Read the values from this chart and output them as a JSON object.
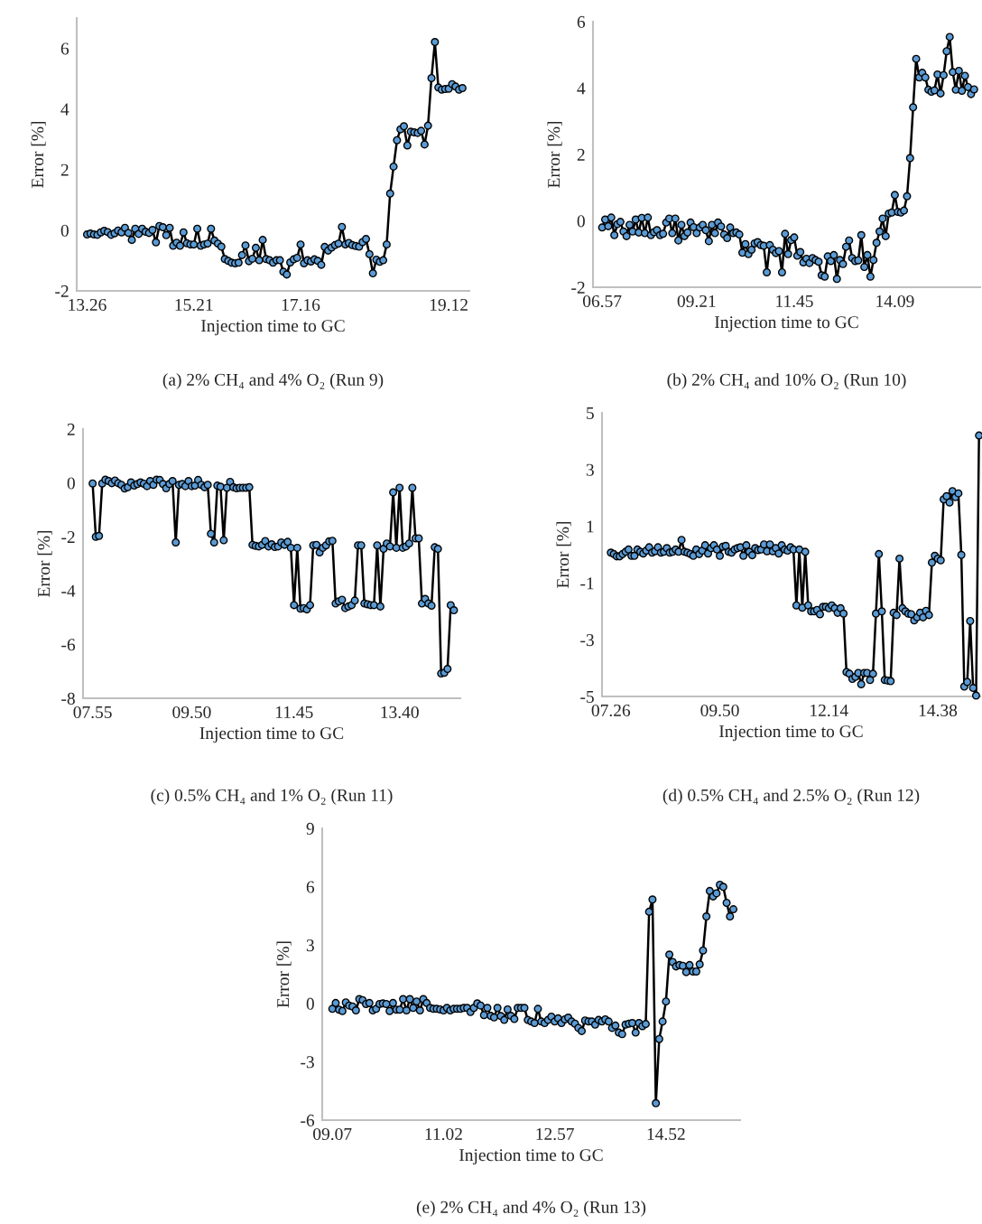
{
  "chart_data": [
    {
      "type": "line",
      "xlabel": "Injection time to GC",
      "ylabel": "Error [%]",
      "annotations": [
        "(a) 2% CH₄ and 4% O₂ (Run 9)"
      ],
      "ylim": [
        -2,
        7
      ],
      "yticks": [
        -2,
        0,
        2,
        4,
        6
      ],
      "grid": false,
      "marker": "circle",
      "line_style": "solid",
      "categories": [
        "13.26",
        null,
        null,
        null,
        null,
        null,
        null,
        null,
        null,
        null,
        null,
        null,
        null,
        null,
        null,
        null,
        null,
        null,
        null,
        null,
        null,
        null,
        null,
        null,
        null,
        null,
        null,
        null,
        null,
        null,
        null,
        "15.21",
        null,
        null,
        null,
        null,
        null,
        null,
        null,
        null,
        null,
        null,
        null,
        null,
        null,
        null,
        null,
        null,
        null,
        null,
        null,
        null,
        null,
        null,
        null,
        null,
        null,
        null,
        null,
        null,
        null,
        null,
        "17.16",
        null,
        null,
        null,
        null,
        null,
        null,
        null,
        null,
        null,
        null,
        null,
        null,
        null,
        null,
        null,
        null,
        null,
        null,
        null,
        null,
        null,
        null,
        null,
        null,
        null,
        null,
        null,
        null,
        null,
        null,
        null,
        null,
        null,
        null,
        null,
        null,
        null,
        null,
        null,
        null,
        null,
        null,
        "19.12",
        null,
        null,
        null,
        null
      ],
      "series": [
        {
          "color": "#5b9bd5",
          "values": [
            -0.14,
            -0.11,
            -0.14,
            -0.15,
            -0.07,
            -0.02,
            -0.06,
            -0.15,
            -0.1,
            -0.01,
            -0.07,
            0.08,
            -0.09,
            -0.32,
            0.05,
            -0.12,
            0.05,
            -0.05,
            -0.09,
            0.01,
            -0.4,
            0.14,
            0.1,
            -0.16,
            0.08,
            -0.51,
            -0.41,
            -0.51,
            -0.07,
            -0.43,
            -0.47,
            -0.47,
            0.05,
            -0.51,
            -0.47,
            -0.44,
            0.05,
            -0.34,
            -0.44,
            -0.54,
            -0.95,
            -1.01,
            -1.07,
            -1.09,
            -1.07,
            -0.82,
            -0.5,
            -1.02,
            -0.94,
            -0.58,
            -0.99,
            -0.32,
            -0.95,
            -0.99,
            -1.07,
            -0.99,
            -0.99,
            -1.37,
            -1.46,
            -1.06,
            -0.96,
            -0.91,
            -0.47,
            -1.09,
            -0.99,
            -1.03,
            -0.96,
            -1.01,
            -1.14,
            -0.55,
            -0.67,
            -0.57,
            -0.49,
            -0.44,
            0.11,
            -0.47,
            -0.42,
            -0.49,
            -0.52,
            -0.54,
            -0.39,
            -0.29,
            -0.79,
            -1.42,
            -0.97,
            -1.04,
            -0.99,
            -0.47,
            1.21,
            2.1,
            2.97,
            3.33,
            3.43,
            2.8,
            3.25,
            3.23,
            3.21,
            3.28,
            2.83,
            3.45,
            5.02,
            6.21,
            4.71,
            4.64,
            4.66,
            4.67,
            4.82,
            4.74,
            4.64,
            4.69
          ]
        }
      ]
    },
    {
      "type": "line",
      "xlabel": "Injection time to GC",
      "ylabel": "Error [%]",
      "annotations": [
        "(b) 2% CH₄ and 10% O₂ (Run 10)"
      ],
      "ylim": [
        -2,
        6
      ],
      "yticks": [
        -2,
        0,
        2,
        4,
        6
      ],
      "grid": false,
      "marker": "circle",
      "line_style": "solid",
      "categories": [
        "06.57",
        null,
        null,
        null,
        null,
        null,
        null,
        null,
        null,
        null,
        null,
        null,
        null,
        null,
        null,
        null,
        null,
        null,
        null,
        null,
        null,
        null,
        null,
        null,
        null,
        null,
        null,
        null,
        null,
        null,
        null,
        "09.21",
        null,
        null,
        null,
        null,
        null,
        null,
        null,
        null,
        null,
        null,
        null,
        null,
        null,
        null,
        null,
        null,
        null,
        null,
        null,
        null,
        null,
        null,
        null,
        null,
        null,
        null,
        null,
        null,
        null,
        null,
        null,
        "11.45",
        null,
        null,
        null,
        null,
        null,
        null,
        null,
        null,
        null,
        null,
        null,
        null,
        null,
        null,
        null,
        null,
        null,
        null,
        null,
        null,
        null,
        null,
        null,
        null,
        null,
        null,
        null,
        null,
        null,
        null,
        null,
        null,
        "14.09",
        null,
        null,
        null,
        null,
        null,
        null,
        null,
        null,
        null,
        null,
        null,
        null,
        null,
        null,
        null,
        null,
        null,
        null,
        null,
        null,
        null,
        null,
        null,
        null,
        null,
        null
      ],
      "series": [
        {
          "color": "#5b9bd5",
          "values": [
            -0.2,
            0.04,
            -0.16,
            0.1,
            -0.43,
            -0.1,
            -0.03,
            -0.32,
            -0.46,
            -0.12,
            -0.32,
            0.04,
            -0.35,
            0.09,
            -0.37,
            0.1,
            -0.43,
            -0.34,
            -0.28,
            -0.43,
            -0.39,
            -0.05,
            0.07,
            -0.37,
            0.07,
            -0.59,
            -0.12,
            -0.46,
            -0.35,
            -0.05,
            -0.19,
            -0.37,
            -0.2,
            -0.12,
            -0.28,
            -0.61,
            -0.12,
            -0.37,
            -0.05,
            -0.17,
            -0.41,
            -0.52,
            -0.2,
            -0.37,
            -0.35,
            -0.41,
            -0.96,
            -0.7,
            -1.0,
            -0.87,
            -0.68,
            -0.64,
            -0.73,
            -0.75,
            -1.55,
            -0.73,
            -0.87,
            -0.97,
            -0.91,
            -1.55,
            -0.39,
            -1.0,
            -0.58,
            -0.5,
            -1.05,
            -0.94,
            -1.25,
            -1.14,
            -1.27,
            -1.12,
            -1.18,
            -1.23,
            -1.64,
            -1.68,
            -1.07,
            -1.21,
            -1.03,
            -1.75,
            -1.18,
            -1.3,
            -0.78,
            -0.59,
            -1.12,
            -1.21,
            -1.19,
            -0.43,
            -1.39,
            -1.03,
            -1.68,
            -1.18,
            -0.66,
            -0.32,
            0.07,
            -0.46,
            0.22,
            0.25,
            0.78,
            0.27,
            0.25,
            0.31,
            0.74,
            1.89,
            3.42,
            4.88,
            4.32,
            4.46,
            4.32,
            3.95,
            3.89,
            3.93,
            4.41,
            3.84,
            4.39,
            5.11,
            5.54,
            4.48,
            3.95,
            4.52,
            3.92,
            4.37,
            4.03,
            3.82,
            3.96
          ]
        }
      ]
    },
    {
      "type": "line",
      "xlabel": "Injection time to GC",
      "ylabel": "Error [%]",
      "annotations": [
        "(c) 0.5% CH₄ and 1% O₂ (Run 11)"
      ],
      "ylim": [
        -8,
        2
      ],
      "yticks": [
        -8,
        -6,
        -4,
        -2,
        0,
        2
      ],
      "grid": false,
      "marker": "circle",
      "line_style": "solid",
      "categories": [
        "07.55",
        null,
        null,
        null,
        null,
        null,
        null,
        null,
        null,
        null,
        null,
        null,
        null,
        null,
        null,
        null,
        null,
        null,
        null,
        null,
        null,
        null,
        null,
        null,
        null,
        null,
        null,
        null,
        null,
        null,
        null,
        "09.50",
        null,
        null,
        null,
        null,
        null,
        null,
        null,
        null,
        null,
        null,
        null,
        null,
        null,
        null,
        null,
        null,
        null,
        null,
        null,
        null,
        null,
        null,
        null,
        null,
        null,
        null,
        null,
        null,
        null,
        null,
        null,
        "11.45",
        null,
        null,
        null,
        null,
        null,
        null,
        null,
        null,
        null,
        null,
        null,
        null,
        null,
        null,
        null,
        null,
        null,
        null,
        null,
        null,
        null,
        null,
        null,
        null,
        null,
        null,
        null,
        null,
        null,
        null,
        null,
        null,
        "13.40",
        null,
        null,
        null,
        null,
        null,
        null,
        null,
        null,
        null,
        null,
        null,
        null,
        null,
        null,
        null,
        null,
        null
      ],
      "series": [
        {
          "color": "#5b9bd5",
          "values": [
            -0.02,
            -2.0,
            -1.97,
            -0.02,
            0.12,
            0.07,
            -0.01,
            0.09,
            -0.01,
            -0.07,
            -0.21,
            -0.16,
            0.02,
            -0.1,
            -0.04,
            0.02,
            -0.03,
            -0.12,
            0.07,
            -0.07,
            0.12,
            0.11,
            -0.04,
            -0.2,
            -0.04,
            0.07,
            -2.21,
            -0.07,
            -0.04,
            -0.12,
            0.07,
            -0.12,
            -0.1,
            0.11,
            -0.07,
            -0.16,
            -0.07,
            -1.89,
            -2.21,
            -0.1,
            -0.14,
            -2.13,
            -0.18,
            0.04,
            -0.16,
            -0.2,
            -0.18,
            -0.18,
            -0.18,
            -0.16,
            -2.3,
            -2.34,
            -2.36,
            -2.3,
            -2.16,
            -2.36,
            -2.28,
            -2.38,
            -2.36,
            -2.21,
            -2.3,
            -2.19,
            -2.41,
            -4.54,
            -2.41,
            -4.67,
            -4.65,
            -4.7,
            -4.54,
            -2.32,
            -2.3,
            -2.58,
            -2.41,
            -2.32,
            -2.17,
            -2.15,
            -4.48,
            -4.4,
            -4.34,
            -4.65,
            -4.59,
            -4.54,
            -4.37,
            -2.32,
            -2.32,
            -4.48,
            -4.51,
            -4.54,
            -4.54,
            -2.32,
            -4.59,
            -2.45,
            -2.25,
            -2.36,
            -0.35,
            -2.41,
            -0.18,
            -2.41,
            -2.36,
            -2.25,
            -0.18,
            -2.06,
            -2.06,
            -4.48,
            -4.31,
            -4.48,
            -4.56,
            -2.39,
            -2.45,
            -7.08,
            -7.05,
            -6.91,
            -4.54,
            -4.73
          ]
        }
      ]
    },
    {
      "type": "line",
      "xlabel": "Injection time to GC",
      "ylabel": "Error [%]",
      "annotations": [
        "(d) 0.5% CH₄ and 2.5% O₂ (Run 12)"
      ],
      "ylim": [
        -5,
        5
      ],
      "yticks": [
        -5,
        -3,
        -1,
        1,
        3,
        5
      ],
      "grid": false,
      "marker": "circle",
      "line_style": "solid",
      "categories": [
        "07.26",
        null,
        null,
        null,
        null,
        null,
        null,
        null,
        null,
        null,
        null,
        null,
        null,
        null,
        null,
        null,
        null,
        null,
        null,
        null,
        null,
        null,
        null,
        null,
        null,
        null,
        null,
        null,
        null,
        null,
        null,
        null,
        null,
        null,
        null,
        null,
        null,
        "09.50",
        null,
        null,
        null,
        null,
        null,
        null,
        null,
        null,
        null,
        null,
        null,
        null,
        null,
        null,
        null,
        null,
        null,
        null,
        null,
        null,
        null,
        null,
        null,
        null,
        null,
        null,
        null,
        null,
        null,
        null,
        null,
        null,
        null,
        null,
        null,
        null,
        "12.14",
        null,
        null,
        null,
        null,
        null,
        null,
        null,
        null,
        null,
        null,
        null,
        null,
        null,
        null,
        null,
        null,
        null,
        null,
        null,
        null,
        null,
        null,
        null,
        null,
        null,
        null,
        null,
        null,
        null,
        null,
        null,
        null,
        null,
        null,
        null,
        null,
        "14.38",
        null,
        null,
        null,
        null,
        null,
        null,
        null,
        null,
        null,
        null,
        null,
        null,
        null,
        null
      ],
      "series": [
        {
          "color": "#5b9bd5",
          "values": [
            0.07,
            0.02,
            -0.06,
            -0.06,
            0.02,
            0.1,
            0.18,
            -0.04,
            -0.04,
            0.18,
            0.1,
            0.04,
            0.14,
            0.26,
            0.07,
            0.12,
            0.26,
            0.07,
            0.1,
            0.23,
            0.07,
            0.1,
            0.18,
            0.1,
            0.52,
            0.1,
            0.07,
            0.02,
            -0.04,
            0.18,
            0.02,
            0.14,
            0.33,
            0.04,
            0.23,
            0.33,
            0.18,
            -0.04,
            0.28,
            0.31,
            0.1,
            0.07,
            0.18,
            0.23,
            0.26,
            -0.04,
            0.33,
            0.1,
            -0.02,
            0.23,
            0.16,
            0.18,
            0.36,
            0.12,
            0.36,
            0.12,
            0.23,
            0.04,
            0.33,
            0.18,
            0.14,
            0.26,
            0.18,
            -1.79,
            0.18,
            -1.87,
            0.1,
            -1.79,
            -2.0,
            -2.0,
            -1.95,
            -2.1,
            -1.84,
            -1.84,
            -1.89,
            -1.79,
            -1.89,
            -2.05,
            -1.89,
            -2.08,
            -4.14,
            -4.2,
            -4.38,
            -4.31,
            -4.17,
            -4.57,
            -4.17,
            -4.17,
            -4.42,
            -4.2,
            -2.08,
            0.02,
            -2.0,
            -4.42,
            -4.44,
            -4.46,
            -2.05,
            -2.13,
            -0.14,
            -1.89,
            -2.0,
            -2.08,
            -2.1,
            -2.32,
            -2.21,
            -2.05,
            -2.21,
            -1.98,
            -2.13,
            -0.28,
            -0.04,
            -0.14,
            -0.2,
            1.95,
            2.06,
            1.84,
            2.24,
            2.03,
            2.16,
            -0.01,
            -4.65,
            -4.49,
            -2.34,
            -4.7,
            -4.97,
            4.2
          ]
        }
      ]
    },
    {
      "type": "line",
      "xlabel": "Injection time to GC",
      "ylabel": "Error [%]",
      "annotations": [
        "(e) 2% CH₄ and 4% O₂ (Run 13)"
      ],
      "ylim": [
        -6,
        9
      ],
      "yticks": [
        -6,
        -3,
        0,
        3,
        6,
        9
      ],
      "grid": false,
      "marker": "circle",
      "line_style": "solid",
      "categories": [
        "09.07",
        null,
        null,
        null,
        null,
        null,
        null,
        null,
        null,
        null,
        null,
        null,
        null,
        null,
        null,
        null,
        null,
        null,
        null,
        null,
        null,
        null,
        null,
        null,
        null,
        null,
        null,
        null,
        null,
        null,
        null,
        null,
        null,
        "11.02",
        null,
        null,
        null,
        null,
        null,
        null,
        null,
        null,
        null,
        null,
        null,
        null,
        null,
        null,
        null,
        null,
        null,
        null,
        null,
        null,
        null,
        null,
        null,
        null,
        null,
        null,
        null,
        null,
        null,
        null,
        null,
        null,
        "12.57",
        null,
        null,
        null,
        null,
        null,
        null,
        null,
        null,
        null,
        null,
        null,
        null,
        null,
        null,
        null,
        null,
        null,
        null,
        null,
        null,
        null,
        null,
        null,
        null,
        null,
        null,
        null,
        null,
        null,
        null,
        null,
        null,
        "14.52",
        null,
        null,
        null,
        null,
        null,
        null,
        null,
        null,
        null,
        null,
        null,
        null,
        null,
        null,
        null,
        null,
        null,
        null,
        null,
        null
      ],
      "series": [
        {
          "color": "#5b9bd5",
          "values": [
            -0.28,
            0.02,
            -0.32,
            -0.39,
            0.05,
            -0.11,
            -0.16,
            -0.36,
            0.22,
            0.17,
            -0.03,
            0.02,
            -0.36,
            -0.28,
            -0.03,
            0.0,
            -0.03,
            -0.39,
            0.02,
            -0.32,
            -0.32,
            0.22,
            -0.36,
            0.22,
            -0.23,
            0.1,
            -0.36,
            0.22,
            0.02,
            -0.23,
            -0.28,
            -0.28,
            -0.31,
            -0.36,
            -0.23,
            -0.36,
            -0.28,
            -0.28,
            -0.28,
            -0.23,
            -0.23,
            -0.44,
            -0.23,
            0.0,
            -0.11,
            -0.6,
            -0.23,
            -0.64,
            -0.72,
            -0.23,
            -0.65,
            -0.85,
            -0.31,
            -0.64,
            -0.8,
            -0.23,
            -0.23,
            -0.23,
            -0.85,
            -0.93,
            -1.01,
            -0.28,
            -0.93,
            -1.01,
            -0.85,
            -0.68,
            -0.93,
            -0.77,
            -1.01,
            -0.82,
            -0.73,
            -0.93,
            -1.04,
            -1.26,
            -1.42,
            -0.88,
            -0.93,
            -0.93,
            -1.09,
            -0.85,
            -0.93,
            -0.82,
            -0.93,
            -1.26,
            -1.14,
            -1.5,
            -1.58,
            -1.09,
            -1.04,
            -1.01,
            -1.5,
            -1.01,
            -1.17,
            -1.06,
            4.71,
            5.34,
            -5.13,
            -1.83,
            -0.93,
            0.1,
            2.51,
            2.13,
            1.9,
            1.97,
            1.93,
            1.61,
            1.97,
            1.64,
            1.64,
            2.01,
            2.72,
            4.47,
            5.78,
            5.5,
            5.66,
            6.1,
            5.99,
            5.17,
            4.47,
            4.84
          ]
        }
      ]
    }
  ]
}
